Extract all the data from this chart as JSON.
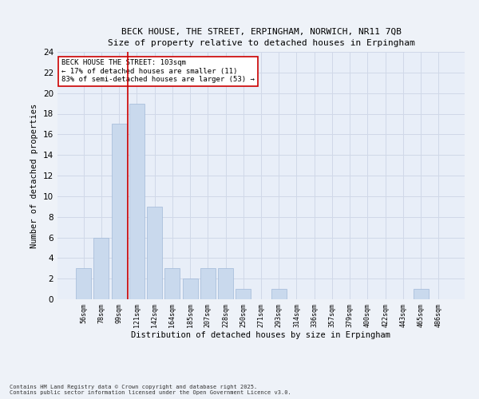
{
  "title_line1": "BECK HOUSE, THE STREET, ERPINGHAM, NORWICH, NR11 7QB",
  "title_line2": "Size of property relative to detached houses in Erpingham",
  "xlabel": "Distribution of detached houses by size in Erpingham",
  "ylabel": "Number of detached properties",
  "categories": [
    "56sqm",
    "78sqm",
    "99sqm",
    "121sqm",
    "142sqm",
    "164sqm",
    "185sqm",
    "207sqm",
    "228sqm",
    "250sqm",
    "271sqm",
    "293sqm",
    "314sqm",
    "336sqm",
    "357sqm",
    "379sqm",
    "400sqm",
    "422sqm",
    "443sqm",
    "465sqm",
    "486sqm"
  ],
  "values": [
    3,
    6,
    17,
    19,
    9,
    3,
    2,
    3,
    3,
    1,
    0,
    1,
    0,
    0,
    0,
    0,
    0,
    0,
    0,
    1,
    0
  ],
  "bar_color": "#c9d9ed",
  "bar_edge_color": "#a0b8d8",
  "ylim": [
    0,
    24
  ],
  "yticks": [
    0,
    2,
    4,
    6,
    8,
    10,
    12,
    14,
    16,
    18,
    20,
    22,
    24
  ],
  "vline_x": 2.5,
  "vline_color": "#cc0000",
  "annotation_text": "BECK HOUSE THE STREET: 103sqm\n← 17% of detached houses are smaller (11)\n83% of semi-detached houses are larger (53) →",
  "annotation_box_color": "#ffffff",
  "annotation_box_edge_color": "#cc0000",
  "grid_color": "#d0d8e8",
  "bg_color": "#e8eef8",
  "fig_bg_color": "#eef2f8",
  "footer_line1": "Contains HM Land Registry data © Crown copyright and database right 2025.",
  "footer_line2": "Contains public sector information licensed under the Open Government Licence v3.0."
}
